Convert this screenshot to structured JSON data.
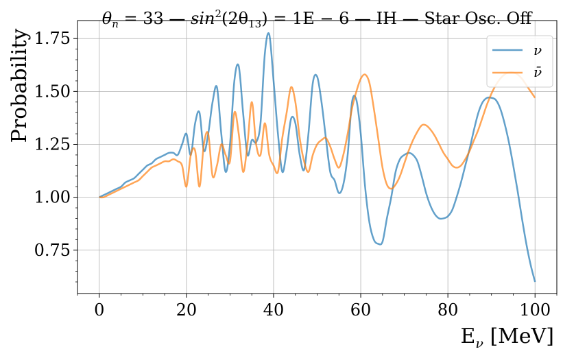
{
  "chart_data": {
    "type": "line",
    "title": "θn = 33 — sin²(2θ13) = 1E − 6 — IH — Star Osc. Off",
    "title_parts": {
      "theta_n": "θ",
      "theta_n_sub": "n",
      "theta_n_value": " = 33 — ",
      "sin": "sin",
      "sin_exp": "2",
      "sin_arg_open": "(2θ",
      "sin_arg_sub": "13",
      "sin_arg_close": ") = 1E − 6 — IH — Star Osc. Off"
    },
    "xlabel": "E",
    "xlabel_sub": "ν",
    "xlabel_unit": " [MeV]",
    "ylabel": "Probability",
    "xlim": [
      -5,
      105
    ],
    "ylim": [
      0.545,
      1.835
    ],
    "x_ticks": [
      0,
      20,
      40,
      60,
      80,
      100
    ],
    "y_ticks": [
      0.75,
      1.0,
      1.25,
      1.5,
      1.75
    ],
    "y_tick_labels": [
      "0.75",
      "1.00",
      "1.25",
      "1.50",
      "1.75"
    ],
    "grid": true,
    "legend_position": "top-right",
    "series": [
      {
        "name": "ν",
        "color": "#1f77b4",
        "x": [
          0,
          1,
          2,
          3,
          4,
          5,
          6,
          7,
          8,
          9,
          10,
          11,
          12,
          13,
          14,
          15,
          16,
          17,
          18,
          19,
          20,
          21,
          22,
          23,
          24,
          25,
          26,
          27,
          28,
          29,
          30,
          31,
          32,
          33,
          34,
          35,
          36,
          37,
          38,
          39,
          40,
          41,
          42,
          43,
          44,
          45,
          46,
          47,
          48,
          49,
          50,
          51,
          52,
          53,
          54,
          55,
          56,
          57,
          58,
          59,
          60,
          61,
          62,
          63,
          64,
          65,
          66,
          67,
          68,
          69,
          70,
          71,
          72,
          73,
          74,
          75,
          76,
          77,
          78,
          79,
          80,
          81,
          82,
          83,
          84,
          85,
          86,
          87,
          88,
          89,
          90,
          91,
          92,
          93,
          94,
          95,
          96,
          97,
          98,
          99,
          100
        ],
        "y": [
          1.0,
          1.01,
          1.02,
          1.03,
          1.04,
          1.05,
          1.07,
          1.08,
          1.09,
          1.11,
          1.13,
          1.15,
          1.16,
          1.18,
          1.19,
          1.2,
          1.21,
          1.21,
          1.2,
          1.25,
          1.3,
          1.2,
          1.35,
          1.4,
          1.22,
          1.3,
          1.45,
          1.52,
          1.3,
          1.12,
          1.25,
          1.55,
          1.62,
          1.4,
          1.2,
          1.27,
          1.26,
          1.35,
          1.68,
          1.77,
          1.55,
          1.3,
          1.12,
          1.22,
          1.37,
          1.35,
          1.2,
          1.13,
          1.3,
          1.54,
          1.57,
          1.45,
          1.28,
          1.12,
          1.08,
          1.02,
          1.06,
          1.2,
          1.45,
          1.46,
          1.3,
          1.05,
          0.88,
          0.8,
          0.78,
          0.79,
          0.9,
          1.0,
          1.12,
          1.18,
          1.2,
          1.21,
          1.2,
          1.17,
          1.1,
          1.02,
          0.96,
          0.92,
          0.9,
          0.9,
          0.91,
          0.94,
          1.0,
          1.07,
          1.15,
          1.23,
          1.32,
          1.4,
          1.45,
          1.47,
          1.47,
          1.46,
          1.42,
          1.35,
          1.26,
          1.15,
          1.03,
          0.9,
          0.78,
          0.68,
          0.6
        ]
      },
      {
        "name": "ν̄",
        "color": "#ff7f0e",
        "x": [
          0,
          1,
          2,
          3,
          4,
          5,
          6,
          7,
          8,
          9,
          10,
          11,
          12,
          13,
          14,
          15,
          16,
          17,
          18,
          19,
          20,
          21,
          22,
          23,
          24,
          25,
          26,
          27,
          28,
          29,
          30,
          31,
          32,
          33,
          34,
          35,
          36,
          37,
          38,
          39,
          40,
          41,
          42,
          43,
          44,
          45,
          46,
          47,
          48,
          49,
          50,
          51,
          52,
          53,
          54,
          55,
          56,
          57,
          58,
          59,
          60,
          61,
          62,
          63,
          64,
          65,
          66,
          67,
          68,
          69,
          70,
          71,
          72,
          73,
          74,
          75,
          76,
          77,
          78,
          79,
          80,
          81,
          82,
          83,
          84,
          85,
          86,
          87,
          88,
          89,
          90,
          91,
          92,
          93,
          94,
          95,
          96,
          97,
          98,
          99,
          100
        ],
        "y": [
          1.0,
          1.0,
          1.01,
          1.02,
          1.03,
          1.04,
          1.05,
          1.06,
          1.07,
          1.08,
          1.1,
          1.12,
          1.14,
          1.15,
          1.16,
          1.17,
          1.17,
          1.18,
          1.17,
          1.15,
          1.05,
          1.2,
          1.22,
          1.05,
          1.25,
          1.3,
          1.1,
          1.15,
          1.25,
          1.2,
          1.17,
          1.4,
          1.3,
          1.12,
          1.25,
          1.45,
          1.25,
          1.2,
          1.35,
          1.2,
          1.15,
          1.12,
          1.28,
          1.4,
          1.52,
          1.45,
          1.28,
          1.17,
          1.12,
          1.2,
          1.25,
          1.27,
          1.28,
          1.24,
          1.18,
          1.14,
          1.2,
          1.3,
          1.42,
          1.5,
          1.56,
          1.58,
          1.54,
          1.42,
          1.28,
          1.14,
          1.06,
          1.04,
          1.06,
          1.1,
          1.16,
          1.22,
          1.27,
          1.31,
          1.34,
          1.34,
          1.32,
          1.29,
          1.25,
          1.21,
          1.18,
          1.15,
          1.14,
          1.15,
          1.18,
          1.22,
          1.27,
          1.32,
          1.38,
          1.44,
          1.49,
          1.53,
          1.56,
          1.58,
          1.59,
          1.59,
          1.58,
          1.56,
          1.53,
          1.5,
          1.47
        ]
      }
    ]
  }
}
